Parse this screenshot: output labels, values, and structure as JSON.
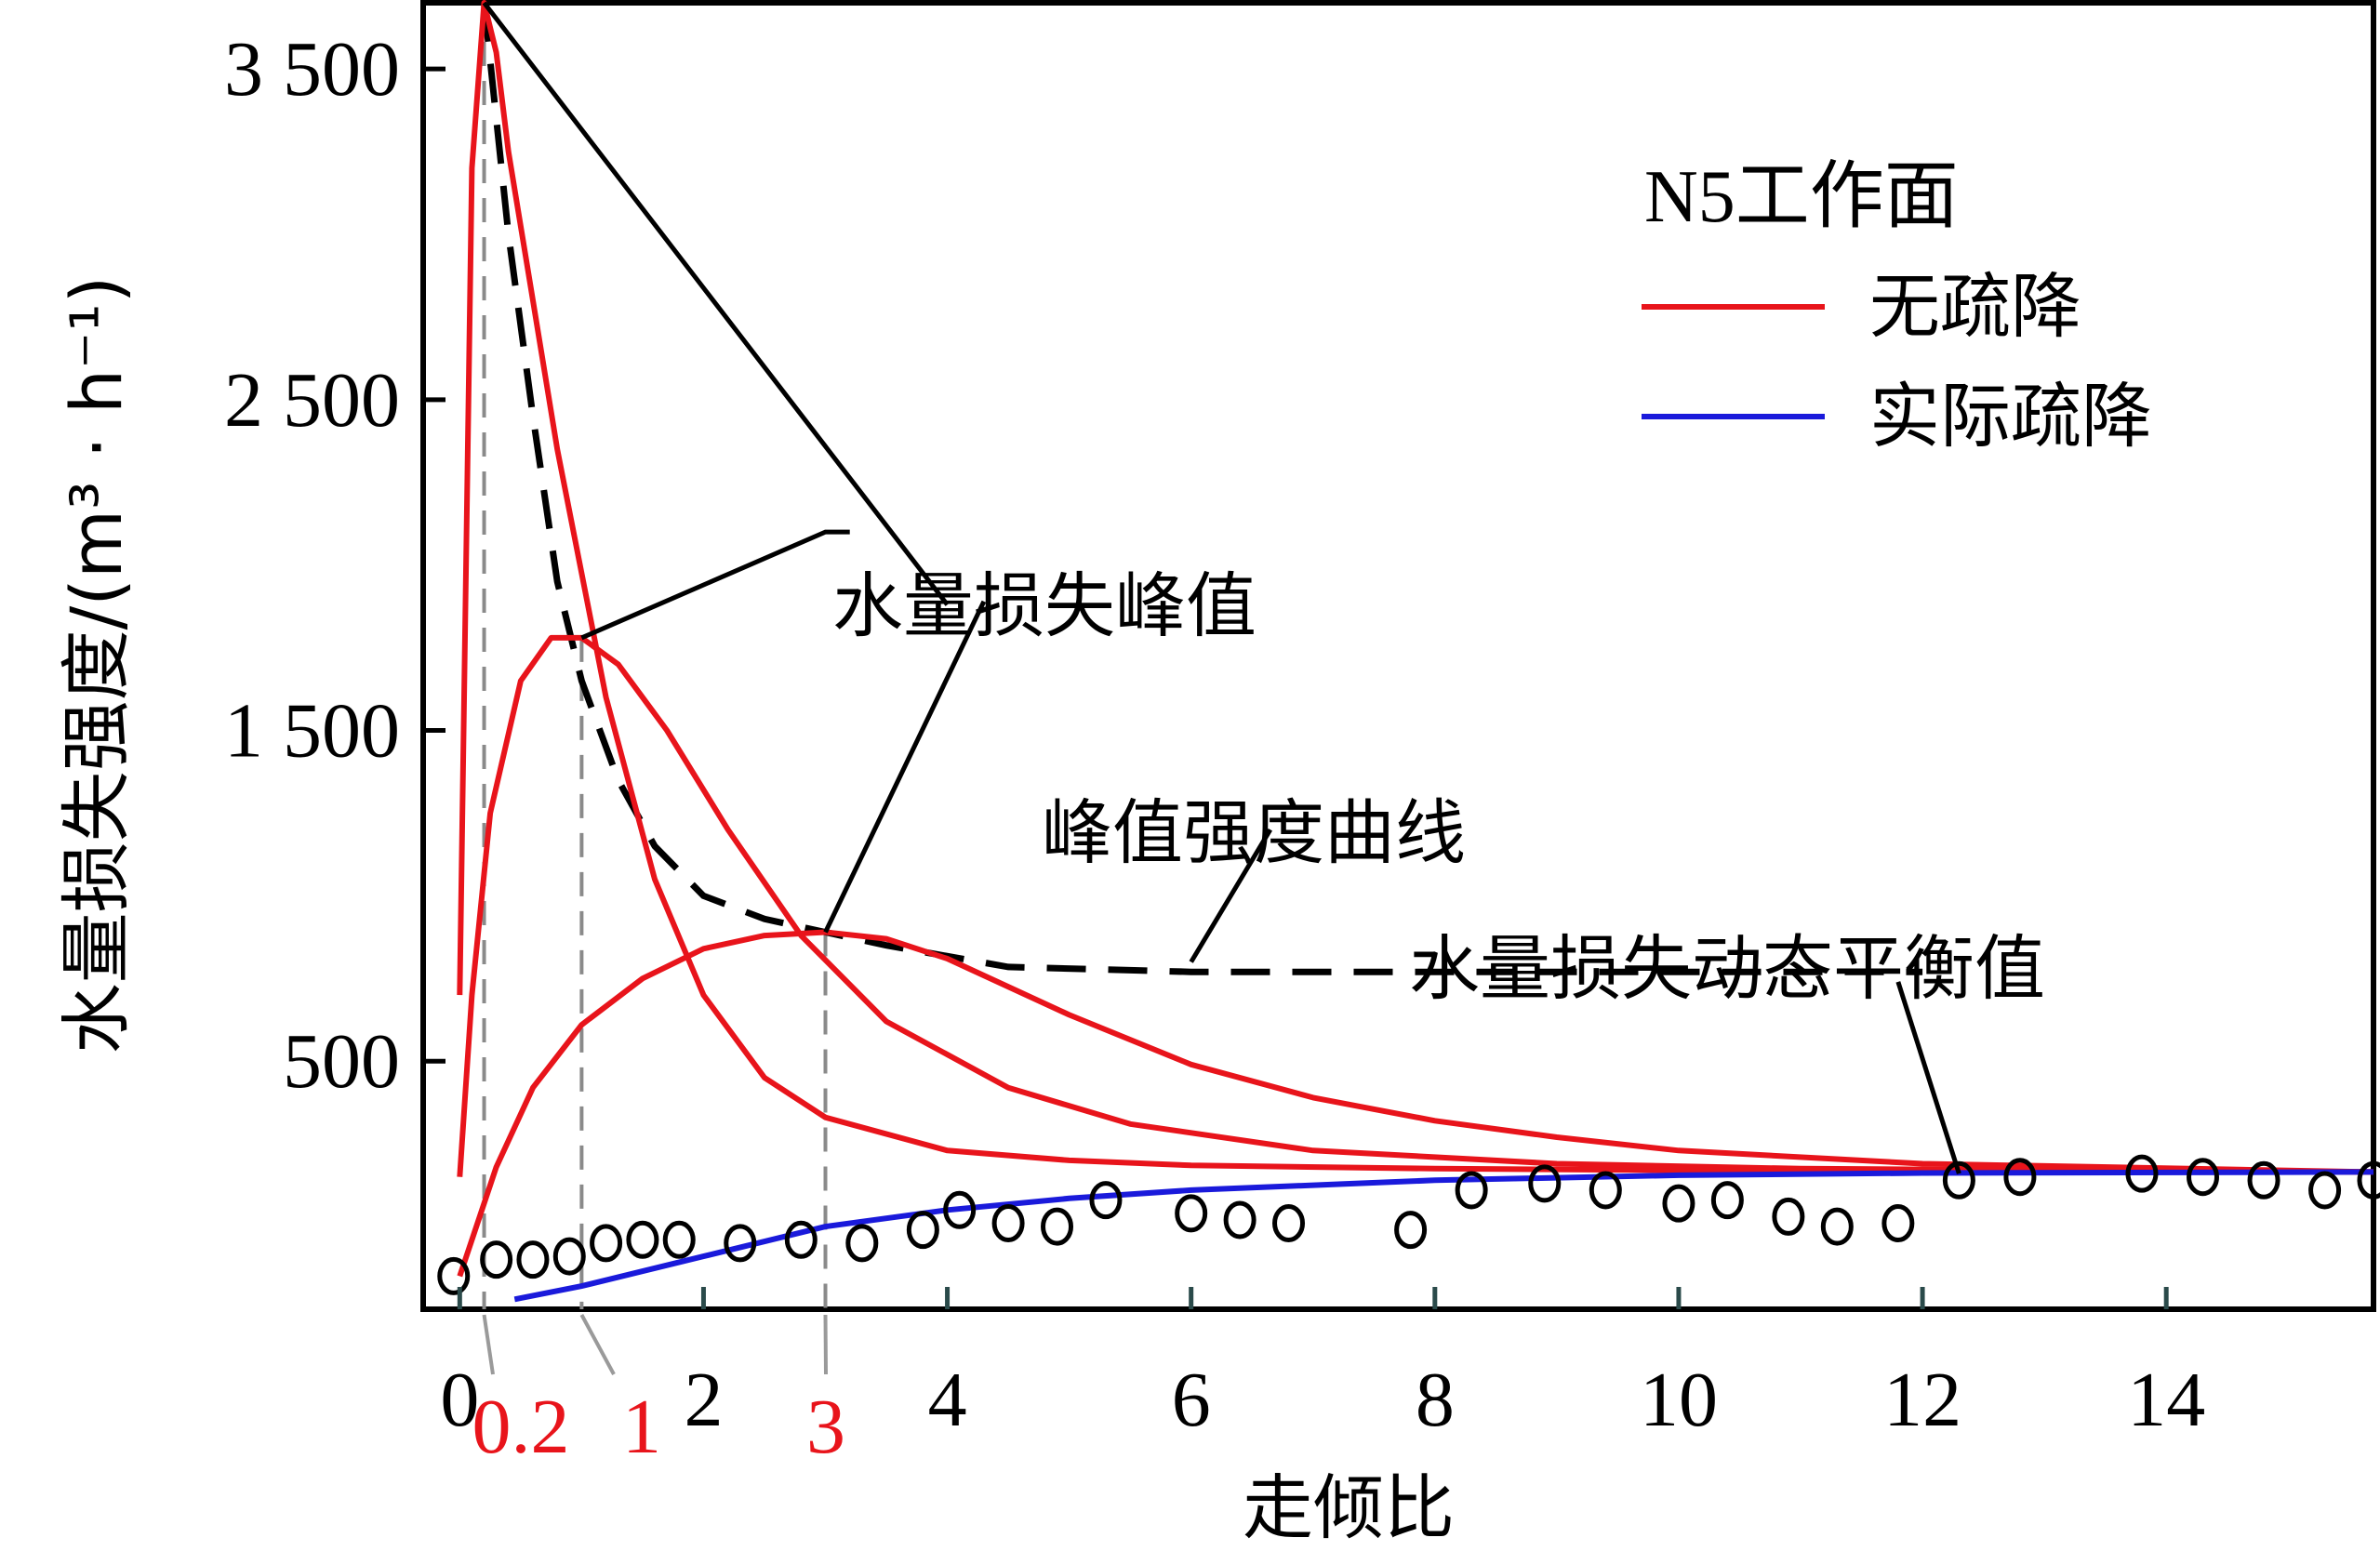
{
  "chart_data": {
    "type": "line",
    "xlabel": "走倾比",
    "ylabel": "水量损失强度/(m³ · h⁻¹)",
    "xlim": [
      -0.3,
      15.7
    ],
    "ylim": [
      -250,
      3700
    ],
    "x_ticks": [
      {
        "value": 0,
        "label": "0"
      },
      {
        "value": 2,
        "label": "2"
      },
      {
        "value": 4,
        "label": "4"
      },
      {
        "value": 6,
        "label": "6"
      },
      {
        "value": 8,
        "label": "8"
      },
      {
        "value": 10,
        "label": "10"
      },
      {
        "value": 12,
        "label": "12"
      },
      {
        "value": 14,
        "label": "14"
      }
    ],
    "y_ticks": [
      {
        "value": 500,
        "label": "500"
      },
      {
        "value": 1500,
        "label": "1 500"
      },
      {
        "value": 2500,
        "label": "2 500"
      },
      {
        "value": 3500,
        "label": "3 500"
      }
    ],
    "marked_x": [
      {
        "value": 0.2,
        "label": "0.2"
      },
      {
        "value": 1,
        "label": "1"
      },
      {
        "value": 3,
        "label": "3"
      }
    ],
    "legend": {
      "title": "N5工作面",
      "position": "top-right",
      "entries": [
        {
          "label": "无疏降",
          "color": "#e8141b"
        },
        {
          "label": "实际疏降",
          "color": "#1a1adb"
        }
      ]
    },
    "series": [
      {
        "name": "无疏降",
        "color": "#e8141b",
        "curves": [
          {
            "x": [
              0,
              0.1,
              0.2,
              0.3,
              0.4,
              0.6,
              0.8,
              1.2,
              1.6,
              2,
              2.5,
              3,
              4,
              5,
              6,
              8,
              10,
              12,
              15.7
            ],
            "y": [
              700,
              3200,
              3700,
              3550,
              3250,
              2800,
              2350,
              1600,
              1050,
              700,
              450,
              330,
              230,
              200,
              185,
              175,
              170,
              168,
              165
            ]
          },
          {
            "x": [
              0,
              0.1,
              0.25,
              0.5,
              0.75,
              1,
              1.3,
              1.7,
              2.2,
              2.8,
              3.5,
              4.5,
              5.5,
              7,
              9,
              11,
              15.7
            ],
            "y": [
              150,
              700,
              1250,
              1650,
              1780,
              1780,
              1700,
              1500,
              1200,
              880,
              620,
              420,
              310,
              230,
              190,
              175,
              165
            ]
          },
          {
            "x": [
              0,
              0.3,
              0.6,
              1,
              1.5,
              2,
              2.5,
              3,
              3.5,
              4,
              5,
              6,
              7,
              8,
              9,
              10,
              12,
              15.7
            ],
            "y": [
              -150,
              180,
              420,
              610,
              750,
              840,
              880,
              890,
              870,
              810,
              640,
              490,
              390,
              320,
              270,
              230,
              190,
              165
            ]
          }
        ]
      },
      {
        "name": "实际疏降",
        "color": "#1a1adb",
        "x": [
          0.45,
          1,
          2,
          3,
          4,
          5,
          6,
          8,
          10,
          12,
          15.7
        ],
        "y": [
          -220,
          -180,
          -90,
          0,
          50,
          85,
          110,
          140,
          155,
          162,
          165
        ]
      }
    ],
    "peak_intensity_curve": {
      "x": [
        0.2,
        0.4,
        0.6,
        0.8,
        1,
        1.3,
        1.6,
        2,
        2.5,
        3,
        3.5,
        4.5,
        6,
        8,
        10,
        12
      ],
      "y": [
        3700,
        3000,
        2450,
        1950,
        1650,
        1350,
        1150,
        1000,
        930,
        890,
        850,
        785,
        770,
        770,
        770,
        770
      ]
    },
    "scatter": {
      "x": [
        -0.05,
        0.3,
        0.6,
        0.9,
        1.2,
        1.5,
        1.8,
        2.3,
        2.8,
        3.3,
        3.8,
        4.1,
        4.5,
        4.9,
        5.3,
        6,
        6.4,
        6.8,
        7.8,
        8.3,
        8.9,
        9.4,
        10,
        10.4,
        10.9,
        11.3,
        11.8,
        12.3,
        12.8,
        13.8,
        14.3,
        14.8,
        15.3,
        15.7
      ],
      "y": [
        -150,
        -100,
        -100,
        -90,
        -50,
        -40,
        -40,
        -50,
        -40,
        -50,
        -10,
        50,
        10,
        0,
        80,
        40,
        20,
        10,
        -10,
        110,
        130,
        110,
        70,
        80,
        30,
        0,
        10,
        140,
        150,
        160,
        150,
        140,
        110,
        140
      ]
    },
    "annotations": [
      {
        "text": "水量损失峰值"
      },
      {
        "text": "峰值强度曲线"
      },
      {
        "text": "水量损失动态平衡值"
      }
    ]
  }
}
